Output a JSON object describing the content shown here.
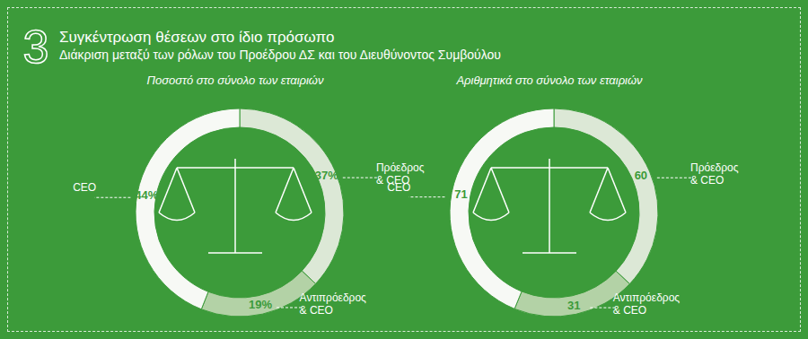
{
  "header": {
    "number": 3,
    "title": "Συγκέντρωση θέσεων στο ίδιο πρόσωπο",
    "subtitle": "Διάκριση μεταξύ  των ρόλων του Προέδρου ΔΣ και του Διευθύνοντος  Συμβούλου"
  },
  "chart_data": [
    {
      "type": "pie",
      "title": "Ποσοστό στο σύνολο των εταιριών",
      "categories": [
        "Πρόεδρος & CEO",
        "Αντιπρόεδρος & CEO",
        "CEO"
      ],
      "values": [
        37,
        19,
        44
      ],
      "value_labels": [
        "37%",
        "19%",
        "44%"
      ],
      "colors": [
        "#dce8d6",
        "#b3d2a6",
        "#f7f9f5"
      ],
      "data_labels": true
    },
    {
      "type": "pie",
      "title": "Αριθμητικά στο σύνολο των εταιριών",
      "categories": [
        "Πρόεδρος & CEO",
        "Αντιπρόεδρος & CEO",
        "CEO"
      ],
      "values": [
        60,
        31,
        71
      ],
      "colors": [
        "#dce8d6",
        "#b3d2a6",
        "#f7f9f5"
      ],
      "data_labels": true
    }
  ]
}
